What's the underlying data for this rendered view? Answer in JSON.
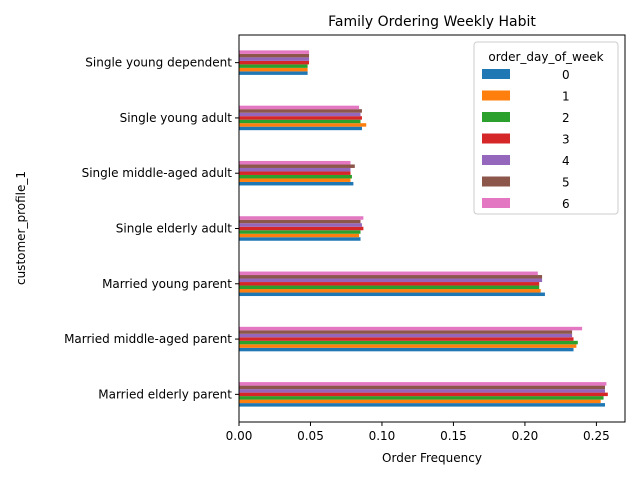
{
  "chart_data": {
    "type": "bar",
    "orientation": "horizontal",
    "title": "Family Ordering Weekly Habit",
    "xlabel": "Order Frequency",
    "ylabel": "customer_profile_1",
    "xlim": [
      0,
      0.27
    ],
    "xticks": [
      "0.00",
      "0.05",
      "0.10",
      "0.15",
      "0.20",
      "0.25"
    ],
    "grid": false,
    "legend_title": "order_day_of_week",
    "legend_position": "top-right",
    "categories": [
      "Married elderly parent",
      "Married middle-aged parent",
      "Married young parent",
      "Single elderly adult",
      "Single middle-aged adult",
      "Single young adult",
      "Single young dependent"
    ],
    "series": [
      {
        "name": "0",
        "color": "#1f77b4",
        "values": [
          0.256,
          0.234,
          0.214,
          0.085,
          0.08,
          0.086,
          0.048
        ]
      },
      {
        "name": "1",
        "color": "#ff7f0e",
        "values": [
          0.253,
          0.236,
          0.211,
          0.084,
          0.078,
          0.089,
          0.048
        ]
      },
      {
        "name": "2",
        "color": "#2ca02c",
        "values": [
          0.255,
          0.237,
          0.21,
          0.085,
          0.079,
          0.085,
          0.048
        ]
      },
      {
        "name": "3",
        "color": "#d62728",
        "values": [
          0.258,
          0.234,
          0.21,
          0.087,
          0.078,
          0.086,
          0.049
        ]
      },
      {
        "name": "4",
        "color": "#9467bd",
        "values": [
          0.256,
          0.233,
          0.212,
          0.086,
          0.078,
          0.085,
          0.049
        ]
      },
      {
        "name": "5",
        "color": "#8c564b",
        "values": [
          0.256,
          0.233,
          0.212,
          0.085,
          0.081,
          0.086,
          0.049
        ]
      },
      {
        "name": "6",
        "color": "#e377c2",
        "values": [
          0.257,
          0.24,
          0.209,
          0.087,
          0.078,
          0.084,
          0.049
        ]
      }
    ]
  }
}
